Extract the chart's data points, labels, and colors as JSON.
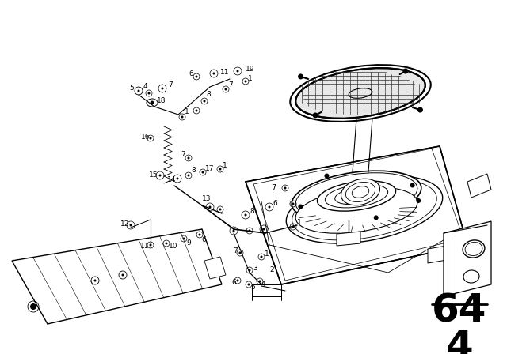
{
  "background_color": "#ffffff",
  "page_number": "64",
  "page_sub": "4",
  "line_color": "#000000",
  "text_color": "#000000",
  "fig_width": 6.4,
  "fig_height": 4.48,
  "dpi": 100,
  "part_number_fontsize": 6.5,
  "part_label_fontsize": 36
}
